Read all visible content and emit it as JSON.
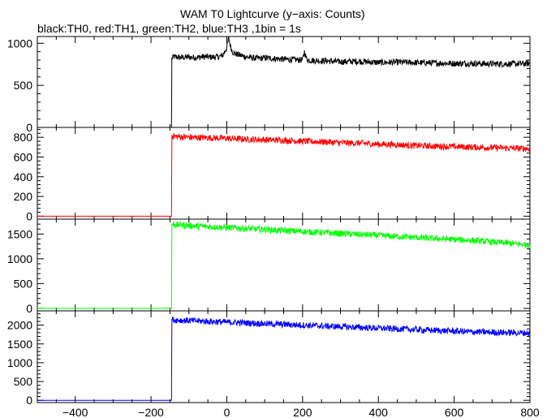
{
  "chart_data": {
    "type": "line",
    "title": "WAM T0 Lightcurve (y−axis: Counts)",
    "subtitle": "black:TH0, red:TH1, green:TH2, blue:TH3 ,1bin = 1s",
    "xlim": [
      -500,
      800
    ],
    "x_ticks": [
      -400,
      -200,
      0,
      200,
      400,
      600,
      800
    ],
    "x_tick_labels": [
      "−400",
      "−200",
      "0",
      "200",
      "400",
      "600",
      "800"
    ],
    "panels": [
      {
        "name": "TH0",
        "color": "#000000",
        "ylim": [
          0,
          1080
        ],
        "y_ticks": [
          0,
          500,
          1000
        ],
        "series": {
          "x": [
            -500,
            -146,
            -145,
            -140,
            -120,
            -100,
            -80,
            -60,
            -40,
            -20,
            -10,
            0,
            5,
            10,
            15,
            20,
            40,
            60,
            80,
            100,
            120,
            150,
            180,
            200,
            205,
            210,
            215,
            230,
            260,
            300,
            350,
            400,
            450,
            500,
            550,
            600,
            650,
            700,
            750,
            800
          ],
          "y": [
            0,
            0,
            820,
            840,
            830,
            835,
            830,
            840,
            835,
            840,
            860,
            950,
            1060,
            960,
            900,
            880,
            850,
            830,
            820,
            825,
            820,
            810,
            805,
            800,
            900,
            820,
            800,
            795,
            790,
            780,
            785,
            770,
            775,
            770,
            765,
            760,
            760,
            755,
            755,
            760
          ]
        }
      },
      {
        "name": "TH1",
        "color": "#ff0000",
        "ylim": [
          -30,
          900
        ],
        "y_ticks": [
          0,
          200,
          400,
          600,
          800
        ],
        "series": {
          "x": [
            -500,
            -146,
            -145,
            -140,
            -100,
            -50,
            0,
            50,
            100,
            150,
            200,
            250,
            300,
            350,
            400,
            450,
            500,
            550,
            600,
            650,
            700,
            750,
            800
          ],
          "y": [
            0,
            0,
            820,
            810,
            800,
            795,
            790,
            780,
            775,
            770,
            760,
            755,
            745,
            740,
            730,
            725,
            715,
            710,
            705,
            700,
            695,
            690,
            685
          ]
        }
      },
      {
        "name": "TH2",
        "color": "#00ff00",
        "ylim": [
          -50,
          1800
        ],
        "y_ticks": [
          0,
          500,
          1000,
          1500
        ],
        "series": {
          "x": [
            -500,
            -146,
            -145,
            -140,
            -100,
            -50,
            0,
            50,
            100,
            150,
            200,
            250,
            300,
            350,
            400,
            450,
            500,
            550,
            600,
            650,
            700,
            750,
            800
          ],
          "y": [
            0,
            0,
            1700,
            1690,
            1670,
            1650,
            1630,
            1610,
            1590,
            1570,
            1550,
            1530,
            1510,
            1490,
            1470,
            1450,
            1430,
            1410,
            1390,
            1370,
            1340,
            1310,
            1280
          ]
        }
      },
      {
        "name": "TH3",
        "color": "#0000ff",
        "ylim": [
          -60,
          2380
        ],
        "y_ticks": [
          0,
          500,
          1000,
          1500,
          2000
        ],
        "series": {
          "x": [
            -500,
            -146,
            -145,
            -140,
            -100,
            -50,
            0,
            50,
            100,
            150,
            200,
            250,
            300,
            350,
            400,
            450,
            500,
            550,
            600,
            650,
            700,
            750,
            800
          ],
          "y": [
            0,
            0,
            2150,
            2140,
            2120,
            2100,
            2080,
            2060,
            2040,
            2020,
            2000,
            1980,
            1960,
            1940,
            1920,
            1900,
            1880,
            1860,
            1840,
            1820,
            1810,
            1800,
            1790
          ]
        }
      }
    ]
  }
}
